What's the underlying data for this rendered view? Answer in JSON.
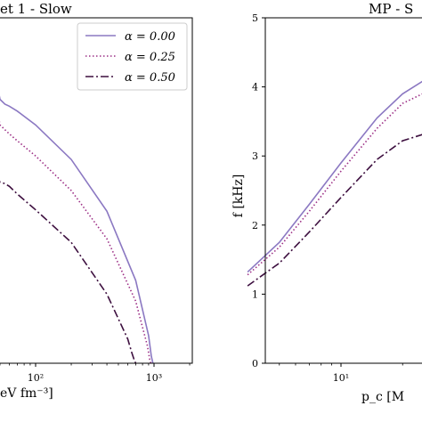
{
  "colors": {
    "series_0": "#8b78c2",
    "series_1": "#9c2f86",
    "series_2": "#3d0f3f",
    "axis": "#000000"
  },
  "chart_data": [
    {
      "type": "line",
      "title": "et 1 - Slow",
      "xlabel": "eV fm⁻³]",
      "ylabel": "",
      "xscale": "log",
      "x_tick_labels": [
        "10²",
        "10³"
      ],
      "y_tick_labels": [],
      "legend": {
        "position": "top-right"
      },
      "series": [
        {
          "name": "α = 0.00",
          "style": "solid",
          "x": [
            40,
            45,
            48,
            50,
            55,
            60,
            70,
            100,
            200,
            400,
            700,
            900,
            950,
            980
          ],
          "y": [
            4.15,
            4.05,
            3.98,
            3.82,
            3.75,
            3.72,
            3.65,
            3.45,
            2.95,
            2.2,
            1.2,
            0.4,
            0.1,
            0.0
          ]
        },
        {
          "name": "α = 0.25",
          "style": "dotted",
          "x": [
            40,
            45,
            48,
            50,
            55,
            60,
            70,
            100,
            200,
            400,
            700,
            880,
            920,
            940
          ],
          "y": [
            3.82,
            3.72,
            3.62,
            3.45,
            3.38,
            3.32,
            3.22,
            3.0,
            2.5,
            1.8,
            0.9,
            0.25,
            0.05,
            0.0
          ]
        },
        {
          "name": "α = 0.50",
          "style": "dashdot",
          "x": [
            40,
            45,
            50,
            55,
            60,
            70,
            100,
            200,
            400,
            600,
            650,
            680,
            700
          ],
          "y": [
            2.9,
            2.8,
            2.62,
            2.6,
            2.56,
            2.45,
            2.22,
            1.75,
            1.0,
            0.35,
            0.15,
            0.05,
            0.0
          ]
        }
      ]
    },
    {
      "type": "line",
      "title": "MP - S",
      "xlabel": "p_c [M",
      "ylabel": "f [kHz]",
      "xscale": "log",
      "ylim": [
        0,
        5
      ],
      "x_tick_labels": [
        "10¹"
      ],
      "y_tick_labels": [
        "0",
        "1",
        "2",
        "3",
        "4",
        "5"
      ],
      "series": [
        {
          "name": "α = 0.00",
          "style": "solid",
          "x": [
            3.5,
            5,
            7,
            10,
            15,
            20,
            25,
            30,
            35,
            40,
            48,
            55
          ],
          "y": [
            1.32,
            1.75,
            2.3,
            2.9,
            3.55,
            3.9,
            4.08,
            4.13,
            4.1,
            4.02,
            3.9,
            3.75
          ]
        },
        {
          "name": "α = 0.25",
          "style": "dotted",
          "x": [
            3.5,
            5,
            7,
            10,
            15,
            20,
            25,
            30,
            35,
            40,
            48,
            55
          ],
          "y": [
            1.28,
            1.68,
            2.2,
            2.78,
            3.4,
            3.76,
            3.9,
            3.93,
            3.9,
            3.82,
            3.72,
            3.6
          ]
        },
        {
          "name": "α = 0.50",
          "style": "dashdot",
          "x": [
            3.5,
            5,
            7,
            10,
            15,
            20,
            25,
            30,
            35,
            40,
            48,
            55
          ],
          "y": [
            1.12,
            1.45,
            1.9,
            2.4,
            2.95,
            3.22,
            3.31,
            3.32,
            3.28,
            3.18,
            3.02,
            2.9
          ]
        }
      ]
    }
  ]
}
